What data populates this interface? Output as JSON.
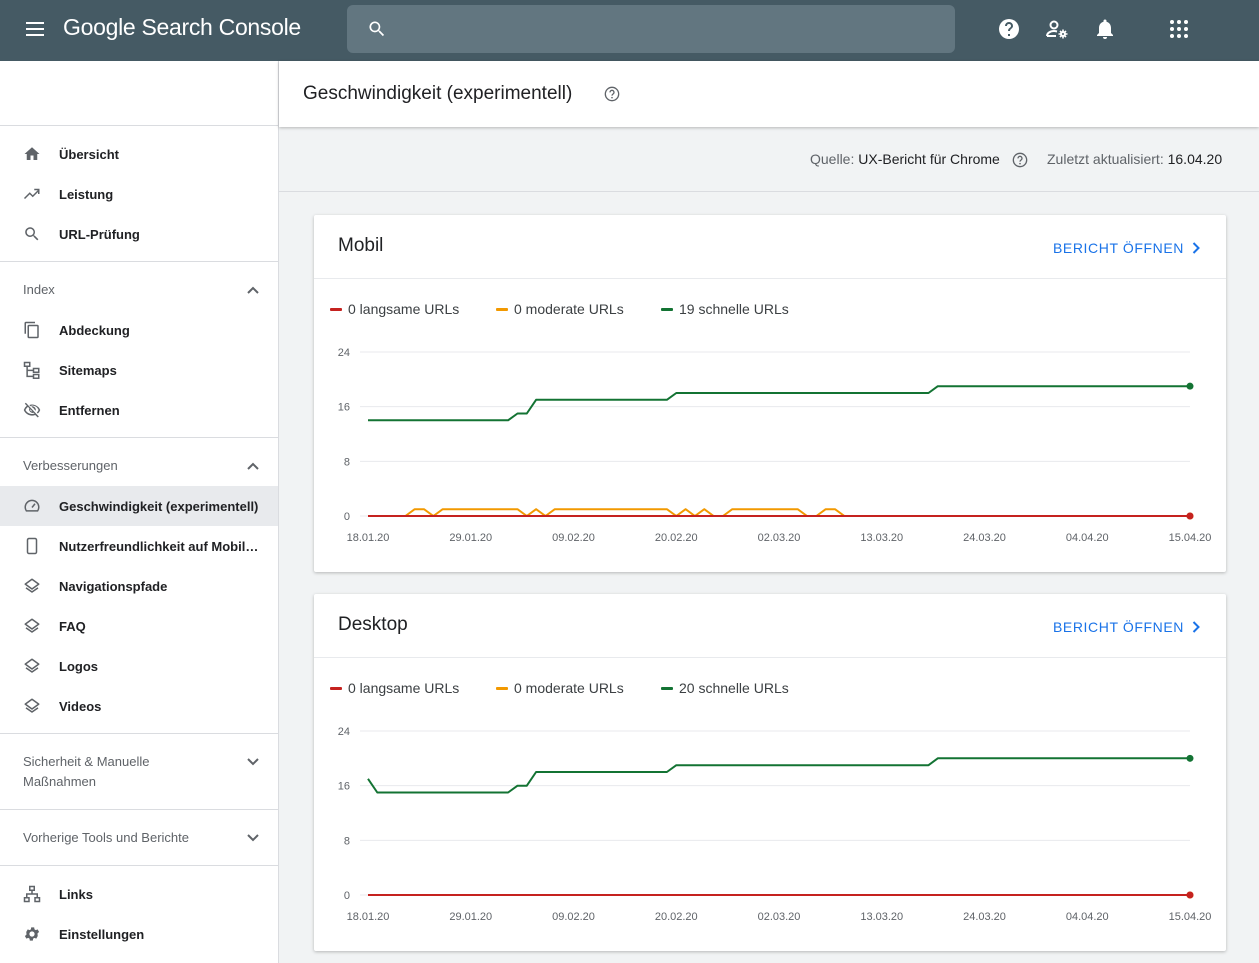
{
  "app": {
    "title_google": "Google",
    "title_product": "Search Console"
  },
  "search": {
    "placeholder": ""
  },
  "topbar_icons": [
    "help-icon",
    "manage-users-icon",
    "bell-icon",
    "apps-icon"
  ],
  "sidebar": {
    "main_items": [
      {
        "label": "Übersicht",
        "icon": "home-icon"
      },
      {
        "label": "Leistung",
        "icon": "trending-up-icon"
      },
      {
        "label": "URL-Prüfung",
        "icon": "search-icon"
      }
    ],
    "index": {
      "header": "Index",
      "items": [
        {
          "label": "Abdeckung",
          "icon": "copy-icon"
        },
        {
          "label": "Sitemaps",
          "icon": "sitemap-icon"
        },
        {
          "label": "Entfernen",
          "icon": "eye-off-icon"
        }
      ]
    },
    "enhancements": {
      "header": "Verbesserungen",
      "items": [
        {
          "label": "Geschwindigkeit (experimentell)",
          "icon": "speedometer-icon",
          "active": true
        },
        {
          "label": "Nutzerfreundlichkeit auf Mobil…",
          "icon": "phone-icon"
        },
        {
          "label": "Navigationspfade",
          "icon": "layers-icon"
        },
        {
          "label": "FAQ",
          "icon": "layers-icon"
        },
        {
          "label": "Logos",
          "icon": "layers-icon"
        },
        {
          "label": "Videos",
          "icon": "layers-icon"
        }
      ]
    },
    "security": {
      "header_line1": "Sicherheit & Manuelle",
      "header_line2": "Maßnahmen"
    },
    "legacy": {
      "header": "Vorherige Tools und Berichte"
    },
    "bottom_items": [
      {
        "label": "Links",
        "icon": "links-icon"
      },
      {
        "label": "Einstellungen",
        "icon": "gear-icon"
      }
    ]
  },
  "page": {
    "title": "Geschwindigkeit (experimentell)",
    "source_label": "Quelle:",
    "source_value": "UX-Bericht für Chrome",
    "updated_label": "Zuletzt aktualisiert:",
    "updated_value": "16.04.20"
  },
  "cards": [
    {
      "title": "Mobil",
      "link": "BERICHT ÖFFNEN",
      "legend": [
        "0 langsame URLs",
        "0 moderate URLs",
        "19 schnelle URLs"
      ]
    },
    {
      "title": "Desktop",
      "link": "BERICHT ÖFFNEN",
      "legend": [
        "0 langsame URLs",
        "0 moderate URLs",
        "20 schnelle URLs"
      ]
    }
  ],
  "colors": {
    "slow": "#c5221f",
    "moderate": "#f29900",
    "fast": "#137333",
    "link": "#1a73e8",
    "topbar": "#455a64"
  },
  "chart_data": [
    {
      "type": "line",
      "title": "Mobil",
      "x_ticks": [
        "18.01.20",
        "29.01.20",
        "09.02.20",
        "20.02.20",
        "02.03.20",
        "13.03.20",
        "24.03.20",
        "04.04.20",
        "15.04.20"
      ],
      "x_range": [
        "18.01.20",
        "15.04.20"
      ],
      "ylim": [
        0,
        24
      ],
      "y_ticks": [
        0,
        8,
        16,
        24
      ],
      "grid": true,
      "legend": "top-left",
      "series": [
        {
          "name": "0 langsame URLs",
          "color": "#c5221f",
          "points": [
            [
              "18.01.20",
              0
            ],
            [
              "15.04.20",
              0
            ]
          ]
        },
        {
          "name": "0 moderate URLs",
          "color": "#f29900",
          "points": [
            [
              "18.01.20",
              0
            ],
            [
              "22.01.20",
              0
            ],
            [
              "23.01.20",
              1
            ],
            [
              "24.01.20",
              1
            ],
            [
              "25.01.20",
              0
            ],
            [
              "26.01.20",
              1
            ],
            [
              "03.02.20",
              1
            ],
            [
              "04.02.20",
              0
            ],
            [
              "05.02.20",
              1
            ],
            [
              "06.02.20",
              0
            ],
            [
              "07.02.20",
              1
            ],
            [
              "19.02.20",
              1
            ],
            [
              "20.02.20",
              0
            ],
            [
              "21.02.20",
              1
            ],
            [
              "22.02.20",
              0
            ],
            [
              "23.02.20",
              1
            ],
            [
              "24.02.20",
              0
            ],
            [
              "25.02.20",
              0
            ],
            [
              "26.02.20",
              1
            ],
            [
              "04.03.20",
              1
            ],
            [
              "05.03.20",
              0
            ],
            [
              "06.03.20",
              0
            ],
            [
              "07.03.20",
              1
            ],
            [
              "08.03.20",
              1
            ],
            [
              "09.03.20",
              0
            ],
            [
              "15.04.20",
              0
            ]
          ]
        },
        {
          "name": "19 schnelle URLs",
          "color": "#137333",
          "points": [
            [
              "18.01.20",
              14
            ],
            [
              "02.02.20",
              14
            ],
            [
              "03.02.20",
              15
            ],
            [
              "04.02.20",
              15
            ],
            [
              "05.02.20",
              17
            ],
            [
              "19.02.20",
              17
            ],
            [
              "20.02.20",
              18
            ],
            [
              "18.03.20",
              18
            ],
            [
              "19.03.20",
              19
            ],
            [
              "15.04.20",
              19
            ]
          ]
        }
      ]
    },
    {
      "type": "line",
      "title": "Desktop",
      "x_ticks": [
        "18.01.20",
        "29.01.20",
        "09.02.20",
        "20.02.20",
        "02.03.20",
        "13.03.20",
        "24.03.20",
        "04.04.20",
        "15.04.20"
      ],
      "x_range": [
        "18.01.20",
        "15.04.20"
      ],
      "ylim": [
        0,
        24
      ],
      "y_ticks": [
        0,
        8,
        16,
        24
      ],
      "grid": true,
      "legend": "top-left",
      "series": [
        {
          "name": "0 langsame URLs",
          "color": "#c5221f",
          "points": [
            [
              "18.01.20",
              0
            ],
            [
              "15.04.20",
              0
            ]
          ]
        },
        {
          "name": "0 moderate URLs",
          "color": "#f29900",
          "points": [
            [
              "18.01.20",
              0
            ],
            [
              "15.04.20",
              0
            ]
          ]
        },
        {
          "name": "20 schnelle URLs",
          "color": "#137333",
          "points": [
            [
              "18.01.20",
              17
            ],
            [
              "19.01.20",
              15
            ],
            [
              "02.02.20",
              15
            ],
            [
              "03.02.20",
              16
            ],
            [
              "04.02.20",
              16
            ],
            [
              "05.02.20",
              18
            ],
            [
              "19.02.20",
              18
            ],
            [
              "20.02.20",
              19
            ],
            [
              "18.03.20",
              19
            ],
            [
              "19.03.20",
              20
            ],
            [
              "15.04.20",
              20
            ]
          ]
        }
      ]
    }
  ]
}
